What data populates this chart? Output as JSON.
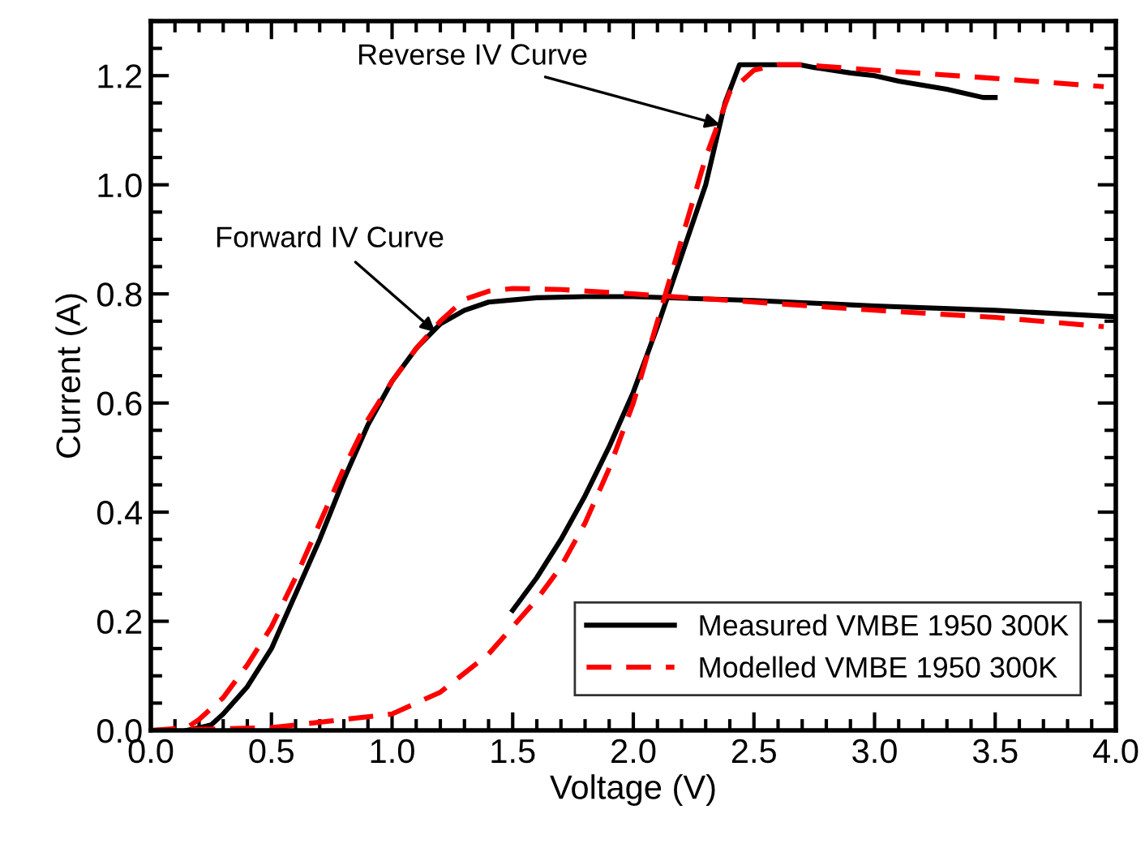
{
  "chart_data": {
    "type": "line",
    "xlabel": "Voltage (V)",
    "ylabel": "Current (A)",
    "xlim": [
      0,
      4
    ],
    "ylim": [
      0,
      1.3
    ],
    "xticks": [
      {
        "value": 0,
        "label": "0.0"
      },
      {
        "value": 0.5,
        "label": "0.5"
      },
      {
        "value": 1,
        "label": "1.0"
      },
      {
        "value": 1.5,
        "label": "1.5"
      },
      {
        "value": 2,
        "label": "2.0"
      },
      {
        "value": 2.5,
        "label": "2.5"
      },
      {
        "value": 3,
        "label": "3.0"
      },
      {
        "value": 3.5,
        "label": "3.5"
      },
      {
        "value": 4,
        "label": "4.0"
      }
    ],
    "yticks": [
      {
        "value": 0,
        "label": "0.0"
      },
      {
        "value": 0.2,
        "label": "0.2"
      },
      {
        "value": 0.4,
        "label": "0.4"
      },
      {
        "value": 0.6,
        "label": "0.6"
      },
      {
        "value": 0.8,
        "label": "0.8"
      },
      {
        "value": 1,
        "label": "1.0"
      },
      {
        "value": 1.2,
        "label": "1.2"
      }
    ],
    "grid": false,
    "legend": "bottom right",
    "marker": "none",
    "annotations": [
      {
        "text": "Forward IV Curve",
        "x": 1.18,
        "y": 0.73
      },
      {
        "text": "Reverse IV Curve",
        "x": 2.36,
        "y": 1.11
      }
    ],
    "series": [
      {
        "name": "Measured VMBE 1950 300K",
        "color": "#000000",
        "line_style": "solid",
        "x": [
          0.15,
          0.25,
          0.3,
          0.4,
          0.5,
          0.6,
          0.7,
          0.8,
          0.9,
          1.0,
          1.1,
          1.2,
          1.3,
          1.4,
          1.6,
          1.8,
          2.0,
          2.5,
          3.0,
          3.5,
          4.0
        ],
        "values": [
          0,
          0.01,
          0.03,
          0.08,
          0.15,
          0.25,
          0.35,
          0.46,
          0.56,
          0.64,
          0.7,
          0.745,
          0.77,
          0.785,
          0.793,
          0.795,
          0.795,
          0.788,
          0.778,
          0.77,
          0.758
        ]
      },
      {
        "color": "#000000",
        "line_style": "solid",
        "x": [
          1.5,
          1.6,
          1.7,
          1.8,
          1.9,
          2.0,
          2.1,
          2.2,
          2.3,
          2.38,
          2.44,
          2.69,
          2.75,
          2.9,
          3.0,
          3.1,
          3.3,
          3.45,
          3.5
        ],
        "values": [
          0.22,
          0.28,
          0.35,
          0.43,
          0.52,
          0.62,
          0.74,
          0.87,
          1.0,
          1.15,
          1.22,
          1.22,
          1.215,
          1.205,
          1.2,
          1.19,
          1.175,
          1.16,
          1.16
        ]
      },
      {
        "name": "Modelled VMBE 1950 300K",
        "color": "#ff0000",
        "line_style": "dashed",
        "x": [
          0,
          0.15,
          0.2,
          0.3,
          0.4,
          0.5,
          0.6,
          0.7,
          0.8,
          0.9,
          1.0,
          1.1,
          1.2,
          1.3,
          1.4,
          1.5,
          1.7,
          2.0,
          2.5,
          3.0,
          3.5,
          3.95
        ],
        "values": [
          0,
          0.005,
          0.02,
          0.06,
          0.12,
          0.19,
          0.28,
          0.38,
          0.48,
          0.57,
          0.64,
          0.7,
          0.75,
          0.79,
          0.805,
          0.81,
          0.808,
          0.8,
          0.785,
          0.77,
          0.757,
          0.74
        ]
      },
      {
        "color": "#ff0000",
        "line_style": "dashed",
        "x": [
          0,
          0.5,
          1.0,
          1.2,
          1.4,
          1.5,
          1.6,
          1.7,
          1.8,
          1.9,
          2.0,
          2.1,
          2.2,
          2.3,
          2.4,
          2.5,
          2.6,
          2.7,
          3.0,
          3.5,
          3.95
        ],
        "values": [
          0,
          0.005,
          0.03,
          0.07,
          0.14,
          0.19,
          0.24,
          0.3,
          0.38,
          0.48,
          0.6,
          0.75,
          0.9,
          1.05,
          1.17,
          1.21,
          1.22,
          1.22,
          1.21,
          1.195,
          1.18
        ]
      }
    ]
  }
}
